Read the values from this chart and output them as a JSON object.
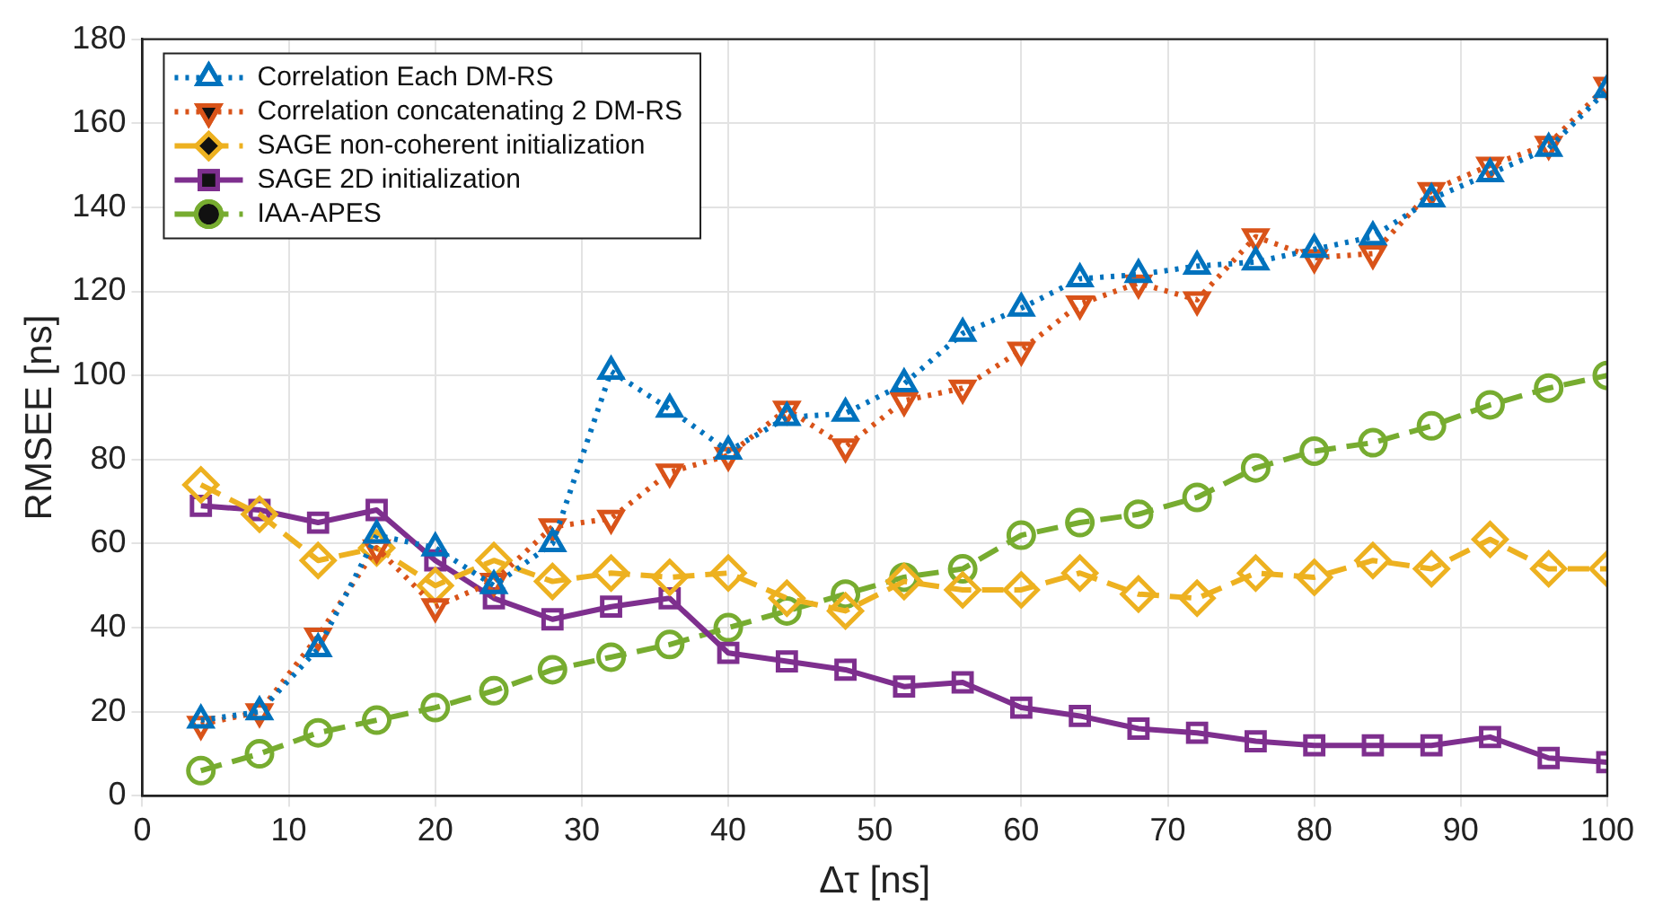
{
  "chart_data": {
    "type": "line",
    "xlabel": "Δτ [ns]",
    "ylabel": "RMSEE [ns]",
    "x": [
      4,
      8,
      12,
      16,
      20,
      24,
      28,
      32,
      36,
      40,
      44,
      48,
      52,
      56,
      60,
      64,
      68,
      72,
      76,
      80,
      84,
      88,
      92,
      96,
      100
    ],
    "xlim": [
      0,
      100
    ],
    "xticks": [
      0,
      10,
      20,
      30,
      40,
      50,
      60,
      70,
      80,
      90,
      100
    ],
    "ylim": [
      0,
      180
    ],
    "yticks": [
      0,
      20,
      40,
      60,
      80,
      100,
      120,
      140,
      160,
      180
    ],
    "grid": true,
    "legend": "top left",
    "series": [
      {
        "name": "Correlation Each DM-RS",
        "color": "#0072bd",
        "marker": "triangle",
        "line_style": "dotted",
        "values": [
          18,
          20,
          35,
          62,
          59,
          50,
          60,
          101,
          92,
          82,
          90,
          91,
          98,
          110,
          116,
          123,
          124,
          126,
          127,
          130,
          133,
          142,
          148,
          154,
          168
        ]
      },
      {
        "name": "Correlation concatenating 2 DM-RS",
        "color": "#d95319",
        "marker": "triangle-down",
        "line_style": "dotted",
        "values": [
          17,
          20,
          38,
          59,
          45,
          51,
          64,
          66,
          77,
          81,
          92,
          83,
          94,
          97,
          106,
          117,
          122,
          118,
          133,
          128,
          129,
          144,
          150,
          155,
          169
        ]
      },
      {
        "name": "SAGE non-coherent initialization",
        "color": "#edb120",
        "marker": "diamond",
        "line_style": "dashed",
        "values": [
          74,
          67,
          56,
          59,
          50,
          56,
          51,
          53,
          52,
          53,
          47,
          44,
          51,
          49,
          49,
          53,
          48,
          47,
          53,
          52,
          56,
          54,
          61,
          54,
          54
        ]
      },
      {
        "name": "SAGE 2D initialization",
        "color": "#7e2f8e",
        "marker": "square",
        "line_style": "solid",
        "values": [
          69,
          68,
          65,
          68,
          56,
          47,
          42,
          45,
          47,
          34,
          32,
          30,
          26,
          27,
          21,
          19,
          16,
          15,
          13,
          12,
          12,
          12,
          14,
          9,
          8
        ]
      },
      {
        "name": "IAA-APES",
        "color": "#77ac30",
        "marker": "circle",
        "line_style": "dashed",
        "values": [
          6,
          10,
          15,
          18,
          21,
          25,
          30,
          33,
          36,
          40,
          44,
          48,
          52,
          54,
          62,
          65,
          67,
          71,
          78,
          82,
          84,
          88,
          93,
          97,
          100
        ]
      }
    ]
  }
}
